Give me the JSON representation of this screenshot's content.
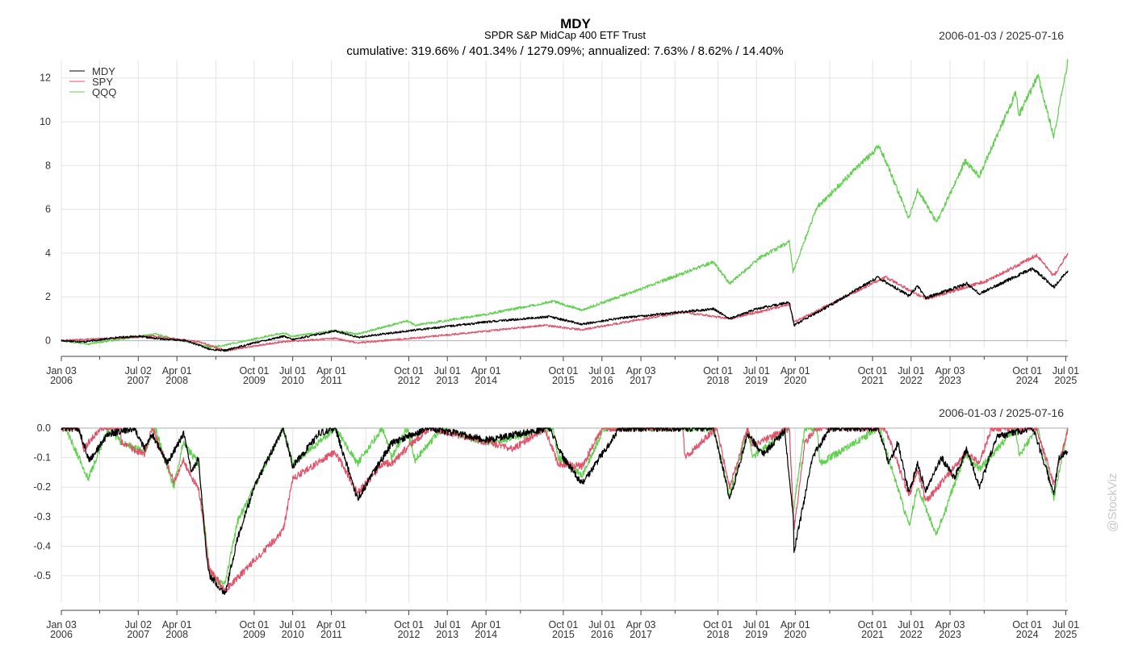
{
  "header": {
    "title": "MDY",
    "subtitle": "SPDR S&P MidCap 400 ETF Trust",
    "stats": "cumulative: 319.66% / 401.34% / 1279.09%; annualized: 7.63% / 8.62% / 14.40%",
    "date_range": "2006-01-03 / 2025-07-16",
    "date_range_lower": "2006-01-03 / 2025-07-16"
  },
  "watermark": "@StockViz",
  "colors": {
    "MDY": "#000000",
    "SPY": "#DF536B",
    "QQQ": "#61D04F",
    "grid": "#e3e3e3",
    "axis": "#444444",
    "zero": "#bdbdbd"
  },
  "chart_data": [
    {
      "type": "line",
      "title": "cumulative: 319.66% / 401.34% / 1279.09%; annualized: 7.63% / 8.62% / 14.40%",
      "x_range": [
        "2006-01-03",
        "2025-07-16"
      ],
      "ylim": [
        -0.35,
        12.8
      ],
      "yticks": [
        0,
        2,
        4,
        6,
        8,
        10,
        12
      ],
      "grid": true,
      "legend_position": "top-left",
      "x_tick_labels": [
        {
          "date": "2006-01-03",
          "label1": "Jan 03",
          "label2": "2006"
        },
        {
          "date": "2007-07-02",
          "label1": "Jul 02",
          "label2": "2007"
        },
        {
          "date": "2008-04-01",
          "label1": "Apr 01",
          "label2": "2008"
        },
        {
          "date": "2009-10-01",
          "label1": "Oct 01",
          "label2": "2009"
        },
        {
          "date": "2010-07-01",
          "label1": "Jul 01",
          "label2": "2010"
        },
        {
          "date": "2011-04-01",
          "label1": "Apr 01",
          "label2": "2011"
        },
        {
          "date": "2012-10-01",
          "label1": "Oct 01",
          "label2": "2012"
        },
        {
          "date": "2013-07-01",
          "label1": "Jul 01",
          "label2": "2013"
        },
        {
          "date": "2014-04-01",
          "label1": "Apr 01",
          "label2": "2014"
        },
        {
          "date": "2015-10-01",
          "label1": "Oct 01",
          "label2": "2015"
        },
        {
          "date": "2016-07-01",
          "label1": "Jul 01",
          "label2": "2016"
        },
        {
          "date": "2017-04-03",
          "label1": "Apr 03",
          "label2": "2017"
        },
        {
          "date": "2018-10-01",
          "label1": "Oct 01",
          "label2": "2018"
        },
        {
          "date": "2019-07-01",
          "label1": "Jul 01",
          "label2": "2019"
        },
        {
          "date": "2020-04-01",
          "label1": "Apr 01",
          "label2": "2020"
        },
        {
          "date": "2021-10-01",
          "label1": "Oct 01",
          "label2": "2021"
        },
        {
          "date": "2022-07-01",
          "label1": "Jul 01",
          "label2": "2022"
        },
        {
          "date": "2023-04-03",
          "label1": "Apr 03",
          "label2": "2023"
        },
        {
          "date": "2024-10-01",
          "label1": "Oct 01",
          "label2": "2024"
        },
        {
          "date": "2025-07-01",
          "label1": "Jul 01",
          "label2": "2025"
        }
      ],
      "x_minor_ticks": [
        "2006-10-02",
        "2009-01-02",
        "2011-12-01",
        "2014-12-01",
        "2017-12-01",
        "2020-12-01",
        "2023-12-01"
      ],
      "series": [
        {
          "name": "MDY",
          "x": [
            "2006-01-03",
            "2006-06-15",
            "2007-02-15",
            "2007-07-02",
            "2007-11-01",
            "2008-06-01",
            "2008-09-01",
            "2008-11-20",
            "2009-03-09",
            "2009-10-01",
            "2010-04-26",
            "2010-07-01",
            "2011-04-29",
            "2011-10-03",
            "2012-10-01",
            "2014-04-01",
            "2015-06-23",
            "2016-02-11",
            "2016-12-01",
            "2018-08-31",
            "2018-12-24",
            "2019-07-01",
            "2020-02-20",
            "2020-03-23",
            "2020-11-30",
            "2021-11-08",
            "2022-06-16",
            "2022-08-16",
            "2022-10-12",
            "2023-07-31",
            "2023-10-27",
            "2024-11-11",
            "2025-04-08",
            "2025-07-16"
          ],
          "y": [
            0,
            -0.05,
            0.15,
            0.2,
            0.1,
            0.0,
            -0.2,
            -0.4,
            -0.45,
            -0.1,
            0.2,
            0.05,
            0.45,
            0.15,
            0.45,
            0.85,
            1.1,
            0.75,
            1.05,
            1.45,
            1.0,
            1.45,
            1.75,
            0.7,
            1.6,
            2.9,
            2.05,
            2.5,
            1.95,
            2.6,
            2.15,
            3.3,
            2.45,
            3.2
          ]
        },
        {
          "name": "SPY",
          "x": [
            "2006-01-03",
            "2007-10-09",
            "2008-09-01",
            "2009-03-09",
            "2010-04-23",
            "2011-04-29",
            "2011-10-03",
            "2013-01-02",
            "2015-05-21",
            "2016-02-11",
            "2018-01-26",
            "2018-12-24",
            "2020-02-19",
            "2020-03-23",
            "2021-12-31",
            "2022-10-12",
            "2023-12-29",
            "2024-12-06",
            "2025-04-08",
            "2025-07-16"
          ],
          "y": [
            0,
            0.2,
            -0.05,
            -0.45,
            -0.05,
            0.1,
            -0.1,
            0.15,
            0.7,
            0.5,
            1.3,
            1.0,
            1.65,
            0.85,
            2.9,
            1.9,
            2.75,
            3.9,
            2.95,
            4.0
          ]
        },
        {
          "name": "QQQ",
          "x": [
            "2006-01-03",
            "2006-07-13",
            "2007-10-31",
            "2008-11-20",
            "2009-03-09",
            "2010-04-23",
            "2010-07-01",
            "2011-04-29",
            "2011-10-03",
            "2012-09-19",
            "2012-11-15",
            "2014-04-01",
            "2015-07-20",
            "2016-02-11",
            "2017-06-01",
            "2018-08-30",
            "2018-12-24",
            "2019-07-26",
            "2020-02-19",
            "2020-03-16",
            "2020-09-02",
            "2021-11-19",
            "2022-06-16",
            "2022-08-16",
            "2022-12-28",
            "2023-07-19",
            "2023-10-26",
            "2024-07-10",
            "2024-08-05",
            "2024-12-16",
            "2025-04-08",
            "2025-07-16"
          ],
          "y": [
            0,
            -0.15,
            0.3,
            -0.3,
            -0.2,
            0.35,
            0.2,
            0.45,
            0.3,
            0.9,
            0.7,
            1.2,
            1.8,
            1.4,
            2.5,
            3.6,
            2.6,
            3.8,
            4.5,
            3.15,
            6.1,
            8.9,
            5.6,
            6.9,
            5.4,
            8.2,
            7.5,
            11.3,
            10.3,
            12.1,
            9.3,
            12.75
          ]
        }
      ]
    },
    {
      "type": "line",
      "title": "",
      "x_range": [
        "2006-01-03",
        "2025-07-16"
      ],
      "ylim": [
        -0.59,
        0.0
      ],
      "yticks": [
        0.0,
        -0.1,
        -0.2,
        -0.3,
        -0.4,
        -0.5
      ],
      "ytick_labels": [
        "0.0",
        "-0.1",
        "-0.2",
        "-0.3",
        "-0.4",
        "-0.5"
      ],
      "grid": true,
      "series": [
        {
          "name": "MDY",
          "x": [
            "2006-01-03",
            "2006-05-05",
            "2006-07-20",
            "2006-12-01",
            "2007-06-05",
            "2007-08-15",
            "2007-10-10",
            "2008-01-22",
            "2008-05-19",
            "2008-07-15",
            "2008-09-01",
            "2008-10-27",
            "2008-11-20",
            "2009-03-09",
            "2009-06-01",
            "2009-10-01",
            "2010-04-26",
            "2010-07-02",
            "2011-01-01",
            "2011-04-29",
            "2011-10-03",
            "2012-06-01",
            "2013-03-01",
            "2014-04-11",
            "2015-06-23",
            "2015-10-01",
            "2016-02-11",
            "2016-11-01",
            "2018-08-31",
            "2018-12-24",
            "2019-04-30",
            "2019-08-15",
            "2020-01-17",
            "2020-03-18",
            "2020-03-23",
            "2020-08-01",
            "2020-11-30",
            "2021-11-08",
            "2022-01-27",
            "2022-03-29",
            "2022-06-16",
            "2022-08-16",
            "2022-10-12",
            "2023-02-02",
            "2023-05-04",
            "2023-07-31",
            "2023-10-27",
            "2024-03-01",
            "2024-11-11",
            "2025-04-08",
            "2025-05-15",
            "2025-07-16"
          ],
          "y": [
            0,
            0,
            -0.11,
            -0.02,
            0,
            -0.07,
            -0.02,
            -0.12,
            -0.02,
            -0.15,
            -0.1,
            -0.43,
            -0.5,
            -0.56,
            -0.38,
            -0.2,
            0,
            -0.13,
            -0.02,
            0,
            -0.24,
            -0.05,
            0,
            -0.04,
            0,
            -0.1,
            -0.19,
            0,
            0,
            -0.24,
            -0.02,
            -0.09,
            -0.01,
            -0.3,
            -0.42,
            -0.1,
            0,
            0,
            -0.12,
            -0.05,
            -0.22,
            -0.12,
            -0.21,
            -0.1,
            -0.17,
            -0.07,
            -0.2,
            -0.03,
            0,
            -0.22,
            -0.1,
            -0.08
          ]
        },
        {
          "name": "SPY",
          "x": [
            "2006-01-03",
            "2006-05-08",
            "2006-06-13",
            "2006-10-01",
            "2007-02-27",
            "2007-03-05",
            "2007-08-15",
            "2007-10-09",
            "2008-03-10",
            "2008-05-19",
            "2008-07-15",
            "2008-09-01",
            "2008-11-20",
            "2009-03-09",
            "2010-04-23",
            "2010-07-02",
            "2011-04-29",
            "2011-10-03",
            "2012-04-02",
            "2012-06-01",
            "2012-10-01",
            "2013-03-01",
            "2014-10-15",
            "2015-05-21",
            "2015-08-25",
            "2016-02-11",
            "2016-07-01",
            "2018-01-26",
            "2018-02-08",
            "2018-09-20",
            "2018-12-24",
            "2019-04-30",
            "2019-06-03",
            "2020-02-19",
            "2020-03-23",
            "2020-06-08",
            "2020-08-31",
            "2021-12-31",
            "2022-06-16",
            "2022-08-16",
            "2022-10-12",
            "2023-07-31",
            "2023-10-27",
            "2024-01-22",
            "2024-12-06",
            "2025-04-08",
            "2025-07-16"
          ],
          "y": [
            0,
            0,
            -0.07,
            0,
            0,
            -0.05,
            -0.09,
            0,
            -0.18,
            -0.11,
            -0.17,
            -0.2,
            -0.48,
            -0.55,
            -0.35,
            -0.17,
            -0.08,
            -0.22,
            -0.12,
            -0.12,
            -0.06,
            0,
            -0.07,
            0,
            -0.12,
            -0.13,
            0,
            0,
            -0.1,
            0,
            -0.2,
            0,
            -0.06,
            0,
            -0.34,
            -0.05,
            0,
            0,
            -0.23,
            -0.14,
            -0.25,
            -0.08,
            -0.12,
            0,
            0,
            -0.19,
            0
          ]
        },
        {
          "name": "QQQ",
          "x": [
            "2006-01-03",
            "2006-02-01",
            "2006-07-13",
            "2006-12-01",
            "2007-03-05",
            "2007-08-15",
            "2007-10-31",
            "2008-03-10",
            "2008-05-15",
            "2008-09-01",
            "2008-11-20",
            "2009-03-09",
            "2009-06-01",
            "2010-04-23",
            "2010-07-02",
            "2011-04-29",
            "2011-10-03",
            "2012-03-26",
            "2012-06-01",
            "2012-09-19",
            "2012-11-15",
            "2013-05-20",
            "2014-04-11",
            "2015-07-20",
            "2015-08-25",
            "2016-02-11",
            "2016-07-15",
            "2018-08-30",
            "2018-12-24",
            "2019-04-30",
            "2019-06-03",
            "2020-02-19",
            "2020-03-16",
            "2020-06-08",
            "2020-09-02",
            "2020-09-23",
            "2021-11-19",
            "2022-06-16",
            "2022-08-16",
            "2022-12-28",
            "2023-07-19",
            "2023-10-26",
            "2024-07-10",
            "2024-08-05",
            "2024-12-16",
            "2025-04-08",
            "2025-07-16"
          ],
          "y": [
            0,
            0,
            -0.17,
            0,
            -0.05,
            -0.08,
            0,
            -0.2,
            -0.05,
            -0.12,
            -0.5,
            -0.53,
            -0.32,
            0,
            -0.12,
            0,
            -0.12,
            0,
            -0.1,
            0,
            -0.11,
            0,
            -0.05,
            0,
            -0.1,
            -0.16,
            0,
            0,
            -0.23,
            0,
            -0.1,
            0,
            -0.29,
            0,
            0,
            -0.12,
            0,
            -0.33,
            -0.2,
            -0.36,
            -0.09,
            -0.14,
            0,
            -0.09,
            0,
            -0.24,
            0
          ]
        }
      ]
    }
  ]
}
